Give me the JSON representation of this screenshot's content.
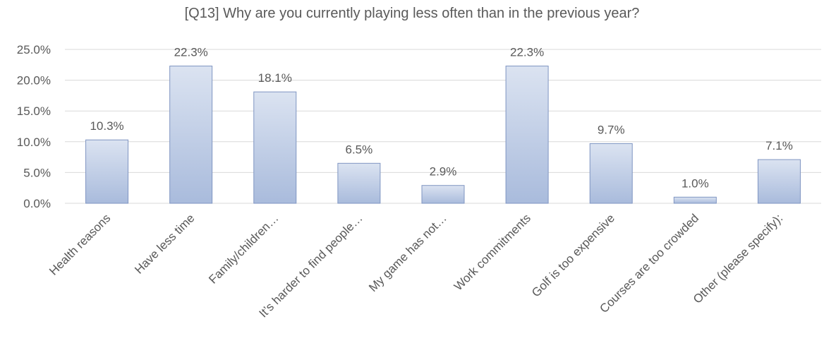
{
  "chart_data": {
    "type": "bar",
    "title": "[Q13] Why are you currently playing less often than in the previous year?",
    "categories": [
      "Health reasons",
      "Have less time",
      "Family/children…",
      "It’s harder to find people…",
      "My game has not…",
      "Work commitments",
      "Golf is too expensive",
      "Courses are too crowded",
      "Other (please specify):"
    ],
    "values": [
      10.3,
      22.3,
      18.1,
      6.5,
      2.9,
      22.3,
      9.7,
      1.0,
      7.1
    ],
    "data_labels": [
      "10.3%",
      "22.3%",
      "18.1%",
      "6.5%",
      "2.9%",
      "22.3%",
      "9.7%",
      "1.0%",
      "7.1%"
    ],
    "yticks": [
      "0.0%",
      "5.0%",
      "10.0%",
      "15.0%",
      "20.0%",
      "25.0%"
    ],
    "ylim": [
      0,
      25
    ],
    "grid": true,
    "legend": "none",
    "colors": {
      "bar_top": "#dbe3f1",
      "bar_bottom": "#a9bbdc",
      "bar_border": "#7f95c2",
      "grid": "#d9d9d9",
      "text": "#595959"
    }
  }
}
